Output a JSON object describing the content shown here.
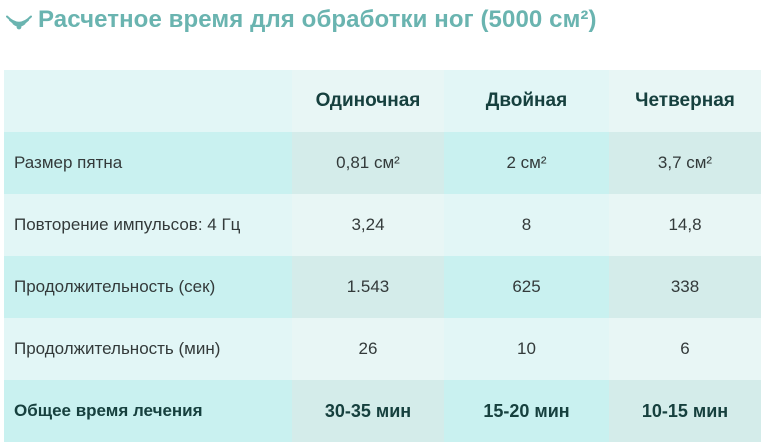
{
  "title": "Расчетное время для обработки ног (5000 см²)",
  "icon": "wave-icon",
  "colors": {
    "title": "#6ab4b0",
    "header_text": "#16403e",
    "band_light": "#e2f6f6",
    "band_dark": "#c9f1f0"
  },
  "table": {
    "columns": [
      "",
      "Одиночная",
      "Двойная",
      "Четверная"
    ],
    "rows": [
      {
        "label": "Размер пятна",
        "values": [
          "0,81 см²",
          "2 см²",
          "3,7 см²"
        ]
      },
      {
        "label": "Повторение импульсов: 4 Гц",
        "values": [
          "3,24",
          "8",
          "14,8"
        ]
      },
      {
        "label": "Продолжительность (сек)",
        "values": [
          "1.543",
          "625",
          "338"
        ]
      },
      {
        "label": "Продолжительность (мин)",
        "values": [
          "26",
          "10",
          "6"
        ]
      }
    ],
    "total": {
      "label": "Общее время лечения",
      "values": [
        "30-35 мин",
        "15-20 мин",
        "10-15 мин"
      ]
    }
  }
}
